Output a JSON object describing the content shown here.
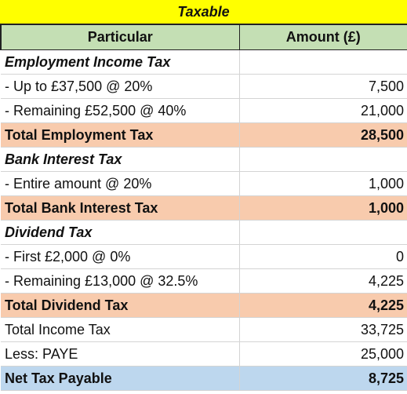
{
  "colors": {
    "title_bg": "#ffff00",
    "header_bg": "#c4dfb4",
    "total_bg": "#f8cbad",
    "net_bg": "#bdd7ee"
  },
  "title": "Taxable",
  "headers": {
    "particular": "Particular",
    "amount": "Amount (£)"
  },
  "rows": [
    {
      "type": "section",
      "label": "Employment Income Tax",
      "amount": ""
    },
    {
      "type": "item",
      "label": "- Up to £37,500 @ 20%",
      "amount": "7,500"
    },
    {
      "type": "item",
      "label": "- Remaining £52,500 @ 40%",
      "amount": "21,000"
    },
    {
      "type": "total",
      "label": "Total Employment Tax",
      "amount": "28,500"
    },
    {
      "type": "section",
      "label": "Bank Interest Tax",
      "amount": ""
    },
    {
      "type": "item",
      "label": "- Entire amount @ 20%",
      "amount": "1,000"
    },
    {
      "type": "total",
      "label": "Total Bank Interest Tax",
      "amount": "1,000"
    },
    {
      "type": "section",
      "label": "Dividend Tax",
      "amount": ""
    },
    {
      "type": "item",
      "label": "- First £2,000 @ 0%",
      "amount": "0"
    },
    {
      "type": "item",
      "label": "- Remaining £13,000 @ 32.5%",
      "amount": "4,225"
    },
    {
      "type": "total",
      "label": "Total Dividend Tax",
      "amount": "4,225"
    },
    {
      "type": "item",
      "label": "Total Income Tax",
      "amount": "33,725"
    },
    {
      "type": "item",
      "label": "Less: PAYE",
      "amount": "25,000"
    },
    {
      "type": "net",
      "label": "Net Tax Payable",
      "amount": "8,725"
    }
  ]
}
